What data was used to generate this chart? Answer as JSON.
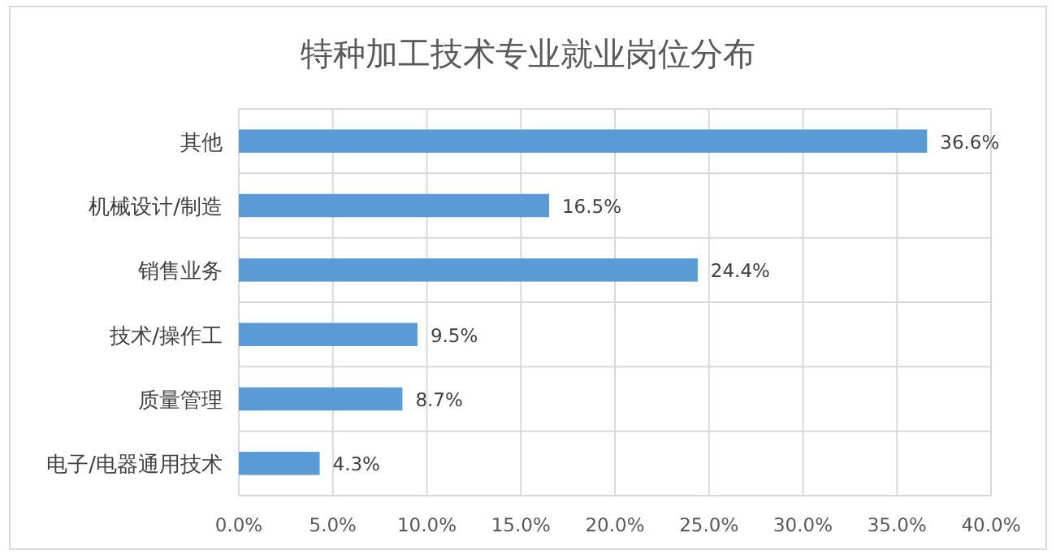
{
  "chart_data": {
    "type": "bar",
    "orientation": "horizontal",
    "title": "特种加工技术专业就业岗位分布",
    "categories": [
      "其他",
      "机械设计/制造",
      "销售业务",
      "技术/操作工",
      "质量管理",
      "电子/电器通用技术"
    ],
    "values": [
      36.6,
      16.5,
      24.4,
      9.5,
      8.7,
      4.3
    ],
    "value_labels": [
      "36.6%",
      "16.5%",
      "24.4%",
      "9.5%",
      "8.7%",
      "4.3%"
    ],
    "color": "#5b9bd5",
    "xlim": [
      0,
      40
    ],
    "xticks": [
      {
        "value": 0,
        "label": "0.0%"
      },
      {
        "value": 5,
        "label": "5.0%"
      },
      {
        "value": 10,
        "label": "10.0%"
      },
      {
        "value": 15,
        "label": "15.0%"
      },
      {
        "value": 20,
        "label": "20.0%"
      },
      {
        "value": 25,
        "label": "25.0%"
      },
      {
        "value": 30,
        "label": "30.0%"
      },
      {
        "value": 35,
        "label": "35.0%"
      },
      {
        "value": 40,
        "label": "40.0%"
      }
    ],
    "grid": true
  }
}
